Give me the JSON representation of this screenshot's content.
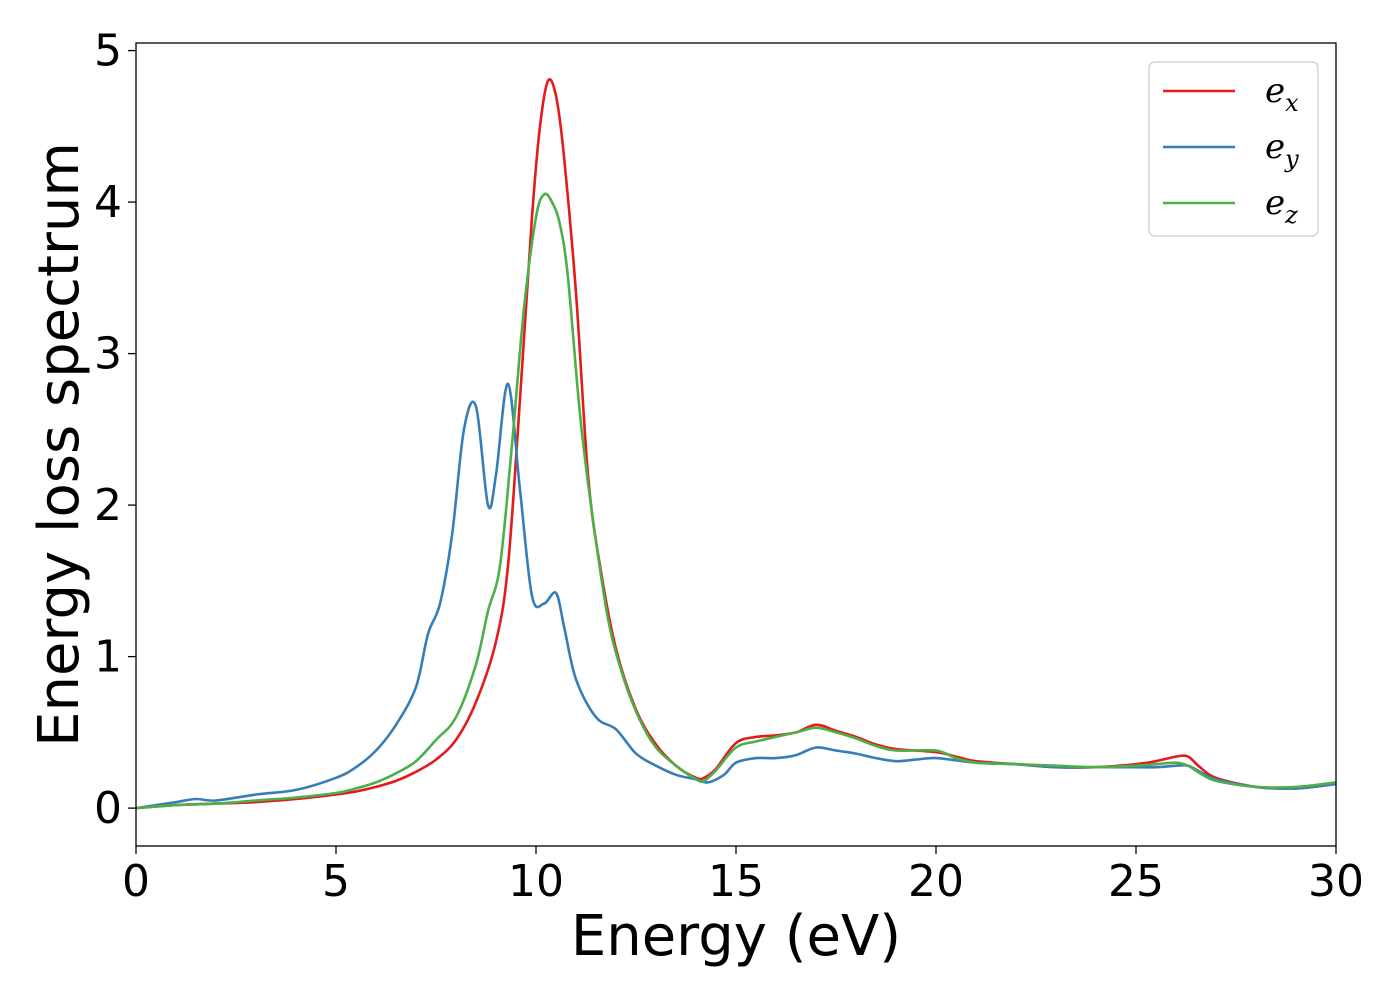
{
  "chart_data": {
    "type": "line",
    "title": "",
    "xlabel": "Energy (eV)",
    "ylabel": "Energy loss spectrum",
    "xlim": [
      0,
      30
    ],
    "ylim": [
      -0.25,
      5.05
    ],
    "xticks": [
      "0",
      "5",
      "10",
      "15",
      "20",
      "25",
      "30"
    ],
    "yticks": [
      "0",
      "1",
      "2",
      "3",
      "4",
      "5"
    ],
    "grid": false,
    "legend_position": "top-right",
    "series": [
      {
        "name": "e",
        "subscript": "x",
        "color": "#e41a1c",
        "x": [
          0,
          1,
          2,
          3,
          4,
          5,
          5.5,
          6,
          6.5,
          7,
          7.5,
          8,
          8.5,
          9,
          9.3,
          9.6,
          9.9,
          10.1,
          10.3,
          10.5,
          10.7,
          11,
          11.3,
          11.6,
          12,
          12.5,
          13,
          13.5,
          14,
          14.2,
          14.5,
          15,
          15.5,
          16,
          16.5,
          17,
          17.5,
          18,
          18.5,
          19,
          20,
          20.5,
          21,
          22,
          23,
          24,
          25,
          25.5,
          26,
          26.3,
          26.6,
          27,
          28,
          29,
          30
        ],
        "y": [
          0,
          0.02,
          0.03,
          0.04,
          0.06,
          0.09,
          0.11,
          0.14,
          0.18,
          0.24,
          0.32,
          0.45,
          0.7,
          1.1,
          1.6,
          2.7,
          3.9,
          4.5,
          4.8,
          4.7,
          4.3,
          3.4,
          2.2,
          1.6,
          1.05,
          0.65,
          0.42,
          0.28,
          0.2,
          0.2,
          0.26,
          0.43,
          0.47,
          0.48,
          0.5,
          0.55,
          0.51,
          0.47,
          0.42,
          0.39,
          0.37,
          0.34,
          0.31,
          0.29,
          0.27,
          0.27,
          0.29,
          0.31,
          0.34,
          0.34,
          0.27,
          0.2,
          0.14,
          0.13,
          0.16
        ]
      },
      {
        "name": "e",
        "subscript": "y",
        "color": "#377eb8",
        "x": [
          0,
          1,
          1.5,
          2,
          3,
          4,
          5,
          5.5,
          6,
          6.5,
          7,
          7.3,
          7.6,
          7.9,
          8.2,
          8.5,
          8.8,
          9.0,
          9.3,
          9.6,
          9.9,
          10.2,
          10.5,
          10.7,
          11,
          11.5,
          12,
          12.5,
          13,
          13.5,
          14,
          14.3,
          14.7,
          15,
          15.5,
          16,
          16.5,
          17,
          17.5,
          18,
          18.5,
          19,
          19.5,
          20,
          21,
          22,
          23,
          24,
          25,
          25.5,
          26,
          26.3,
          26.6,
          27,
          28,
          29,
          30
        ],
        "y": [
          0,
          0.04,
          0.06,
          0.05,
          0.09,
          0.12,
          0.2,
          0.27,
          0.38,
          0.55,
          0.8,
          1.15,
          1.35,
          1.8,
          2.5,
          2.65,
          2.0,
          2.2,
          2.8,
          2.1,
          1.4,
          1.35,
          1.42,
          1.2,
          0.85,
          0.6,
          0.52,
          0.36,
          0.28,
          0.22,
          0.19,
          0.17,
          0.22,
          0.3,
          0.33,
          0.33,
          0.35,
          0.4,
          0.38,
          0.36,
          0.33,
          0.31,
          0.32,
          0.33,
          0.3,
          0.29,
          0.27,
          0.27,
          0.27,
          0.27,
          0.28,
          0.28,
          0.24,
          0.19,
          0.14,
          0.13,
          0.16
        ]
      },
      {
        "name": "e",
        "subscript": "z",
        "color": "#4daf4a",
        "x": [
          0,
          1,
          2,
          3,
          4,
          5,
          5.5,
          6,
          6.5,
          7,
          7.5,
          8,
          8.5,
          8.8,
          9.1,
          9.4,
          9.7,
          10.0,
          10.2,
          10.4,
          10.6,
          10.8,
          11.1,
          11.4,
          11.8,
          12.2,
          12.6,
          13,
          13.5,
          14,
          14.2,
          14.5,
          15,
          15.5,
          16,
          16.5,
          17,
          17.5,
          18,
          18.5,
          19,
          20,
          20.5,
          21,
          22,
          23,
          24,
          25,
          25.5,
          26,
          26.3,
          26.6,
          27,
          28,
          29,
          30
        ],
        "y": [
          0,
          0.02,
          0.03,
          0.05,
          0.07,
          0.1,
          0.13,
          0.17,
          0.23,
          0.31,
          0.45,
          0.6,
          0.95,
          1.3,
          1.6,
          2.4,
          3.3,
          3.9,
          4.05,
          4.0,
          3.85,
          3.5,
          2.6,
          1.95,
          1.25,
          0.85,
          0.58,
          0.4,
          0.28,
          0.19,
          0.18,
          0.25,
          0.4,
          0.44,
          0.47,
          0.5,
          0.53,
          0.5,
          0.46,
          0.41,
          0.38,
          0.38,
          0.33,
          0.3,
          0.29,
          0.28,
          0.27,
          0.28,
          0.29,
          0.3,
          0.28,
          0.23,
          0.18,
          0.14,
          0.14,
          0.17
        ]
      }
    ]
  }
}
